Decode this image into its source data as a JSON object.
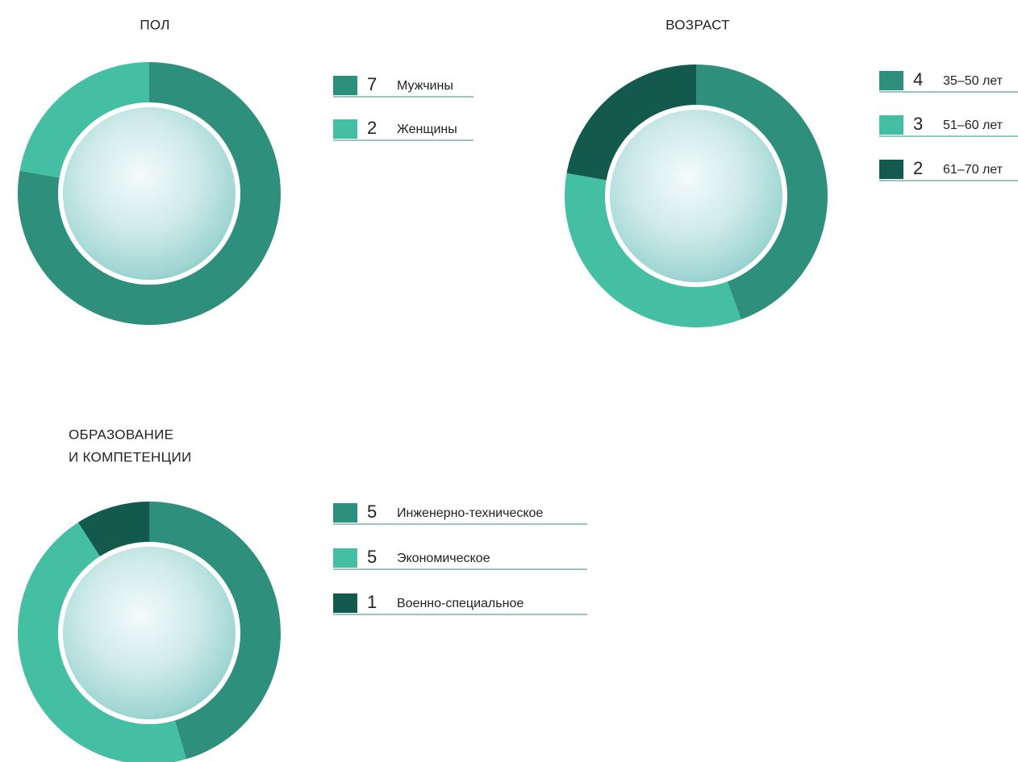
{
  "chart_data": [
    {
      "type": "pie",
      "title": [
        "ПОЛ"
      ],
      "categories": [
        "Мужчины",
        "Женщины"
      ],
      "values": [
        7,
        2
      ],
      "colors": [
        "#2f8f7d",
        "#45bfa3"
      ]
    },
    {
      "type": "pie",
      "title": [
        "ВОЗРАСТ"
      ],
      "categories": [
        "35–50 лет",
        "51–60 лет",
        "61–70 лет"
      ],
      "values": [
        4,
        3,
        2
      ],
      "colors": [
        "#2f8f7d",
        "#45bfa3",
        "#14594e"
      ]
    },
    {
      "type": "pie",
      "title": [
        "ОБРАЗОВАНИЕ",
        "И КОМПЕТЕНЦИИ"
      ],
      "categories": [
        "Инженерно-техническое",
        "Экономическое",
        "Военно-специальное"
      ],
      "values": [
        5,
        5,
        1
      ],
      "colors": [
        "#2f8f7d",
        "#45bfa3",
        "#14594e"
      ]
    }
  ]
}
